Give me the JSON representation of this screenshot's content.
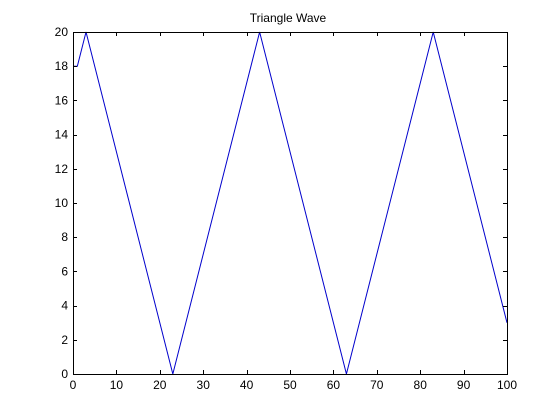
{
  "chart_data": {
    "type": "line",
    "title": "Triangle Wave",
    "xlabel": "",
    "ylabel": "",
    "xlim": [
      0,
      100
    ],
    "ylim": [
      0,
      20
    ],
    "xticks": [
      0,
      10,
      20,
      30,
      40,
      50,
      60,
      70,
      80,
      90,
      100
    ],
    "yticks": [
      0,
      2,
      4,
      6,
      8,
      10,
      12,
      14,
      16,
      18,
      20
    ],
    "xtick_labels": [
      "0",
      "10",
      "20",
      "30",
      "40",
      "50",
      "60",
      "70",
      "80",
      "90",
      "100"
    ],
    "ytick_labels": [
      "0",
      "2",
      "4",
      "6",
      "8",
      "10",
      "12",
      "14",
      "16",
      "18",
      "20"
    ],
    "grid": false,
    "series": [
      {
        "color": "#0000cc",
        "x": [
          0,
          1,
          3,
          23,
          43,
          63,
          83,
          100
        ],
        "y": [
          18,
          18,
          20,
          0,
          20,
          0,
          20,
          3
        ]
      }
    ]
  }
}
